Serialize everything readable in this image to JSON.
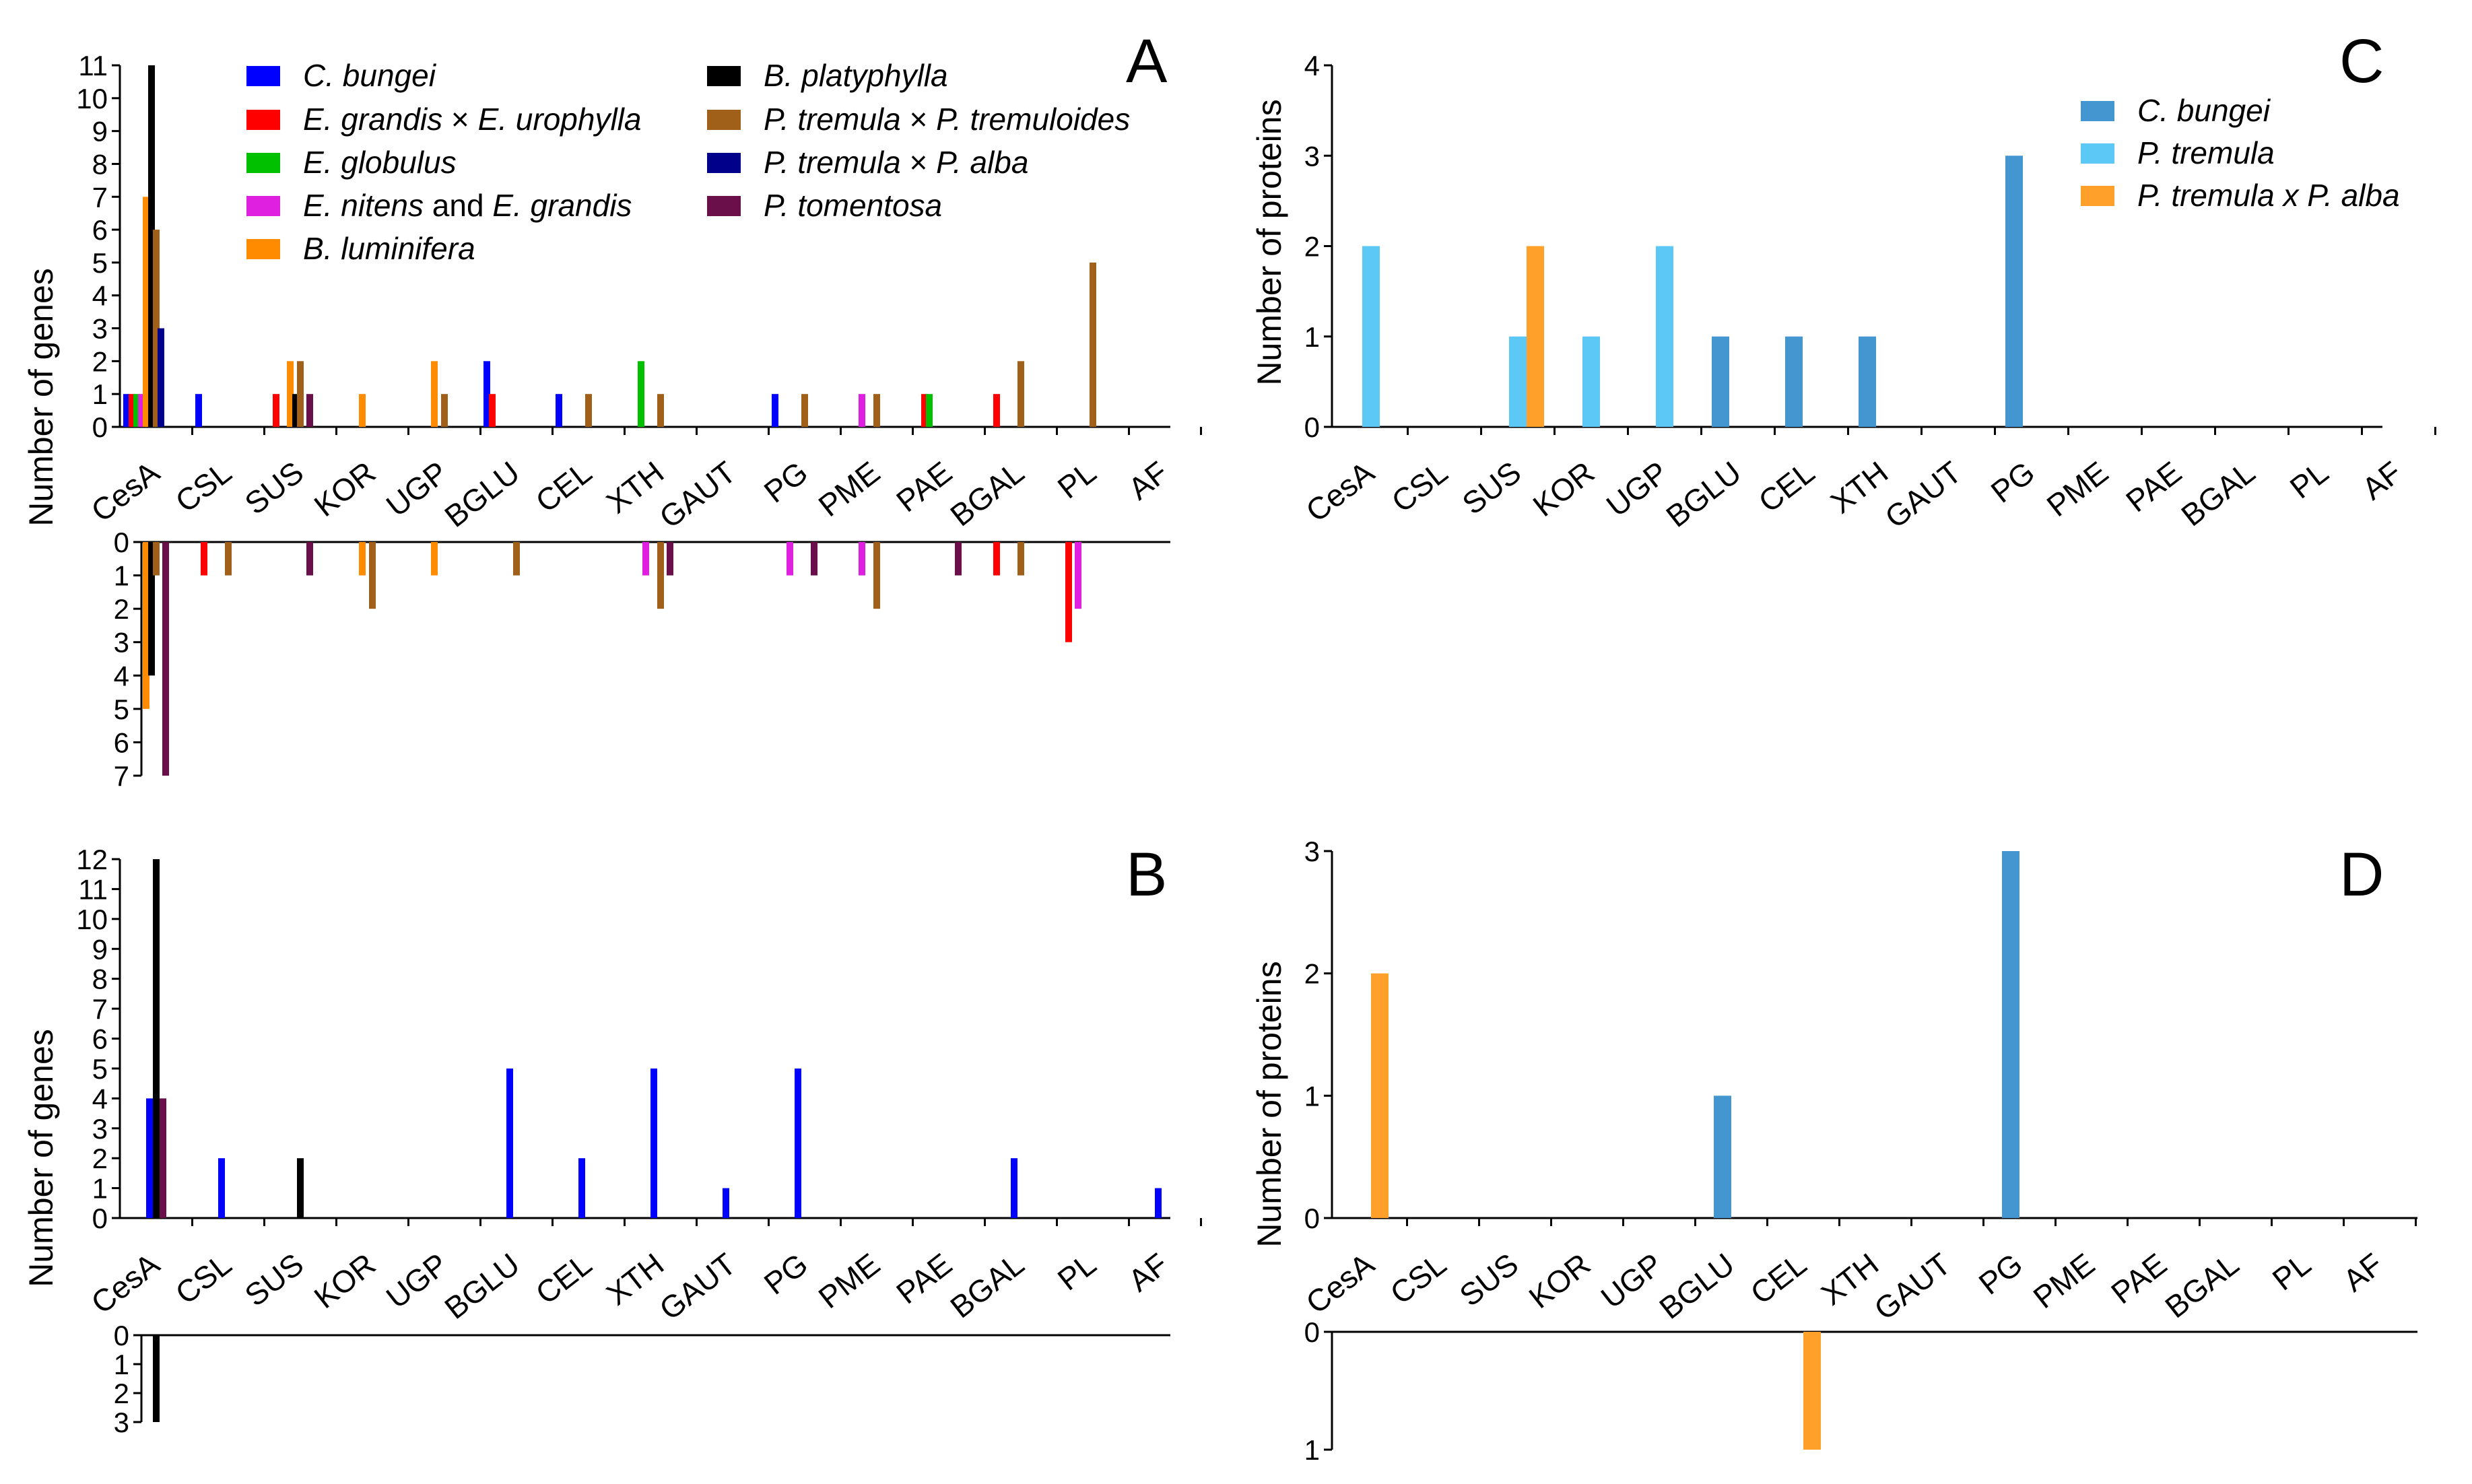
{
  "chart_data": [
    {
      "panel": "A",
      "type": "bar",
      "ylabel": "Number of genes",
      "ylim": [
        0,
        11
      ],
      "ylim_lower": [
        0,
        7
      ],
      "y_ticks": [
        "0",
        "1",
        "2",
        "3",
        "4",
        "5",
        "6",
        "7",
        "8",
        "9",
        "10",
        "11"
      ],
      "y_ticks_lower": [
        "0",
        "1",
        "2",
        "3",
        "4",
        "5",
        "6",
        "7"
      ],
      "categories": [
        "CesA",
        "CSL",
        "SUS",
        "KOR",
        "UGP",
        "BGLU",
        "CEL",
        "XTH",
        "GAUT",
        "PG",
        "PME",
        "PAE",
        "BGAL",
        "PL",
        "AF"
      ],
      "legend": [
        {
          "label": "C. bungei",
          "color": "#0000ff"
        },
        {
          "label": "E. grandis × E. urophylla",
          "color": "#ff0000"
        },
        {
          "label": "E. globulus",
          "color": "#00c000"
        },
        {
          "label": "E. nitens and E. grandis",
          "color": "#e020e0"
        },
        {
          "label": "B. luminifera",
          "color": "#ff8c00"
        },
        {
          "label": "B. platyphylla",
          "color": "#000000"
        },
        {
          "label": "P. tremula × P. tremuloides",
          "color": "#a0601a"
        },
        {
          "label": "P. tremula × P. alba",
          "color": "#00008b"
        },
        {
          "label": "P. tomentosa",
          "color": "#6b0f4b"
        }
      ],
      "series": [
        {
          "name": "C. bungei",
          "up": [
            1,
            1,
            0,
            0,
            0,
            2,
            1,
            0,
            0,
            1,
            0,
            0,
            0,
            0,
            0
          ],
          "down": [
            0,
            0,
            0,
            0,
            0,
            0,
            0,
            0,
            0,
            0,
            0,
            0,
            0,
            0,
            0
          ]
        },
        {
          "name": "E. grandis × E. urophylla",
          "up": [
            1,
            0,
            1,
            0,
            0,
            1,
            0,
            0,
            0,
            0,
            0,
            1,
            1,
            0,
            0
          ],
          "down": [
            0,
            1,
            0,
            0,
            0,
            0,
            0,
            0,
            0,
            0,
            0,
            0,
            1,
            3,
            0
          ]
        },
        {
          "name": "E. globulus",
          "up": [
            1,
            0,
            0,
            0,
            0,
            0,
            0,
            2,
            0,
            0,
            0,
            1,
            0,
            0,
            0
          ],
          "down": [
            0,
            0,
            0,
            0,
            0,
            0,
            0,
            0,
            0,
            0,
            0,
            0,
            0,
            0,
            0
          ]
        },
        {
          "name": "E. nitens and E. grandis",
          "up": [
            1,
            0,
            0,
            0,
            0,
            0,
            0,
            0,
            0,
            0,
            1,
            0,
            0,
            0,
            0
          ],
          "down": [
            0,
            0,
            0,
            0,
            0,
            0,
            0,
            1,
            0,
            1,
            1,
            0,
            0,
            2,
            0
          ]
        },
        {
          "name": "B. luminifera",
          "up": [
            7,
            0,
            2,
            1,
            2,
            0,
            0,
            0,
            0,
            0,
            0,
            0,
            0,
            0,
            0
          ],
          "down": [
            5,
            0,
            0,
            1,
            1,
            0,
            0,
            0,
            0,
            0,
            0,
            0,
            0,
            0,
            0
          ]
        },
        {
          "name": "B. platyphylla",
          "up": [
            11,
            0,
            1,
            0,
            0,
            0,
            0,
            0,
            0,
            0,
            0,
            0,
            0,
            0,
            0
          ],
          "down": [
            4,
            0,
            0,
            0,
            0,
            0,
            0,
            0,
            0,
            0,
            0,
            0,
            0,
            0,
            0
          ]
        },
        {
          "name": "P. tremula × P. tremuloides",
          "up": [
            6,
            0,
            2,
            0,
            1,
            0,
            1,
            1,
            0,
            1,
            1,
            0,
            2,
            5,
            0
          ],
          "down": [
            1,
            1,
            0,
            2,
            0,
            1,
            0,
            2,
            0,
            0,
            2,
            0,
            1,
            0,
            0
          ]
        },
        {
          "name": "P. tremula × P. alba",
          "up": [
            3,
            0,
            0,
            0,
            0,
            0,
            0,
            0,
            0,
            0,
            0,
            0,
            0,
            0,
            0
          ],
          "down": [
            0,
            0,
            0,
            0,
            0,
            0,
            0,
            0,
            0,
            0,
            0,
            0,
            0,
            0,
            0
          ]
        },
        {
          "name": "P. tomentosa",
          "up": [
            0,
            0,
            1,
            0,
            0,
            0,
            0,
            0,
            0,
            0,
            0,
            0,
            0,
            0,
            0
          ],
          "down": [
            7,
            0,
            1,
            0,
            0,
            0,
            0,
            1,
            0,
            1,
            0,
            1,
            0,
            0,
            0
          ]
        }
      ]
    },
    {
      "panel": "B",
      "type": "bar",
      "ylabel": "Number of genes",
      "ylim": [
        0,
        12
      ],
      "ylim_lower": [
        0,
        3
      ],
      "y_ticks": [
        "0",
        "1",
        "2",
        "3",
        "4",
        "5",
        "6",
        "7",
        "8",
        "9",
        "10",
        "11",
        "12"
      ],
      "y_ticks_lower": [
        "0",
        "1",
        "2",
        "3"
      ],
      "categories": [
        "CesA",
        "CSL",
        "SUS",
        "KOR",
        "UGP",
        "BGLU",
        "CEL",
        "XTH",
        "GAUT",
        "PG",
        "PME",
        "PAE",
        "BGAL",
        "PL",
        "AF"
      ],
      "series": [
        {
          "name": "C. bungei",
          "color": "#0000ff",
          "up": [
            4,
            2,
            0,
            0,
            0,
            5,
            2,
            5,
            1,
            5,
            0,
            0,
            2,
            0,
            1
          ],
          "down": [
            0,
            0,
            0,
            0,
            0,
            0,
            0,
            0,
            0,
            0,
            0,
            0,
            0,
            0,
            0
          ]
        },
        {
          "name": "B. platyphylla",
          "color": "#000000",
          "up": [
            12,
            0,
            2,
            0,
            0,
            0,
            0,
            0,
            0,
            0,
            0,
            0,
            0,
            0,
            0
          ],
          "down": [
            3,
            0,
            0,
            0,
            0,
            0,
            0,
            0,
            0,
            0,
            0,
            0,
            0,
            0,
            0
          ]
        },
        {
          "name": "P. tomentosa",
          "color": "#6b0f4b",
          "up": [
            4,
            0,
            0,
            0,
            0,
            0,
            0,
            0,
            0,
            0,
            0,
            0,
            0,
            0,
            0
          ],
          "down": [
            0,
            0,
            0,
            0,
            0,
            0,
            0,
            0,
            0,
            0,
            0,
            0,
            0,
            0,
            0
          ]
        }
      ]
    },
    {
      "panel": "C",
      "type": "bar",
      "ylabel": "Number of proteins",
      "ylim": [
        0,
        4
      ],
      "y_ticks": [
        "0",
        "1",
        "2",
        "3",
        "4"
      ],
      "categories": [
        "CesA",
        "CSL",
        "SUS",
        "KOR",
        "UGP",
        "BGLU",
        "CEL",
        "XTH",
        "GAUT",
        "PG",
        "PME",
        "PAE",
        "BGAL",
        "PL",
        "AF"
      ],
      "legend": [
        {
          "label": "C. bungei",
          "color": "#4396d0"
        },
        {
          "label": "P. tremula",
          "color": "#5bc8f5"
        },
        {
          "label": "P. tremula x P. alba",
          "color": "#ffa02a"
        }
      ],
      "series": [
        {
          "name": "C. bungei",
          "up": [
            0,
            0,
            0,
            0,
            0,
            1,
            1,
            1,
            0,
            3,
            0,
            0,
            0,
            0,
            0
          ]
        },
        {
          "name": "P. tremula",
          "up": [
            2,
            0,
            1,
            1,
            2,
            0,
            0,
            0,
            0,
            0,
            0,
            0,
            0,
            0,
            0
          ]
        },
        {
          "name": "P. tremula x P. alba",
          "up": [
            0,
            0,
            2,
            0,
            0,
            0,
            0,
            0,
            0,
            0,
            0,
            0,
            0,
            0,
            0
          ]
        }
      ]
    },
    {
      "panel": "D",
      "type": "bar",
      "ylabel": "Number of proteins",
      "ylim": [
        0,
        3
      ],
      "ylim_lower": [
        0,
        1
      ],
      "y_ticks": [
        "0",
        "1",
        "2",
        "3"
      ],
      "y_ticks_lower": [
        "0",
        "1"
      ],
      "categories": [
        "CesA",
        "CSL",
        "SUS",
        "KOR",
        "UGP",
        "BGLU",
        "CEL",
        "XTH",
        "GAUT",
        "PG",
        "PME",
        "PAE",
        "BGAL",
        "PL",
        "AF"
      ],
      "series": [
        {
          "name": "C. bungei",
          "color": "#4396d0",
          "up": [
            0,
            0,
            0,
            0,
            0,
            1,
            0,
            0,
            0,
            3,
            0,
            0,
            0,
            0,
            0
          ],
          "down": [
            0,
            0,
            0,
            0,
            0,
            0,
            0,
            0,
            0,
            0,
            0,
            0,
            0,
            0,
            0
          ]
        },
        {
          "name": "P. tremula x P. alba",
          "color": "#ffa02a",
          "up": [
            2,
            0,
            0,
            0,
            0,
            0,
            0,
            0,
            0,
            0,
            0,
            0,
            0,
            0,
            0
          ],
          "down": [
            0,
            0,
            0,
            0,
            0,
            0,
            1,
            0,
            0,
            0,
            0,
            0,
            0,
            0,
            0
          ]
        }
      ]
    }
  ]
}
